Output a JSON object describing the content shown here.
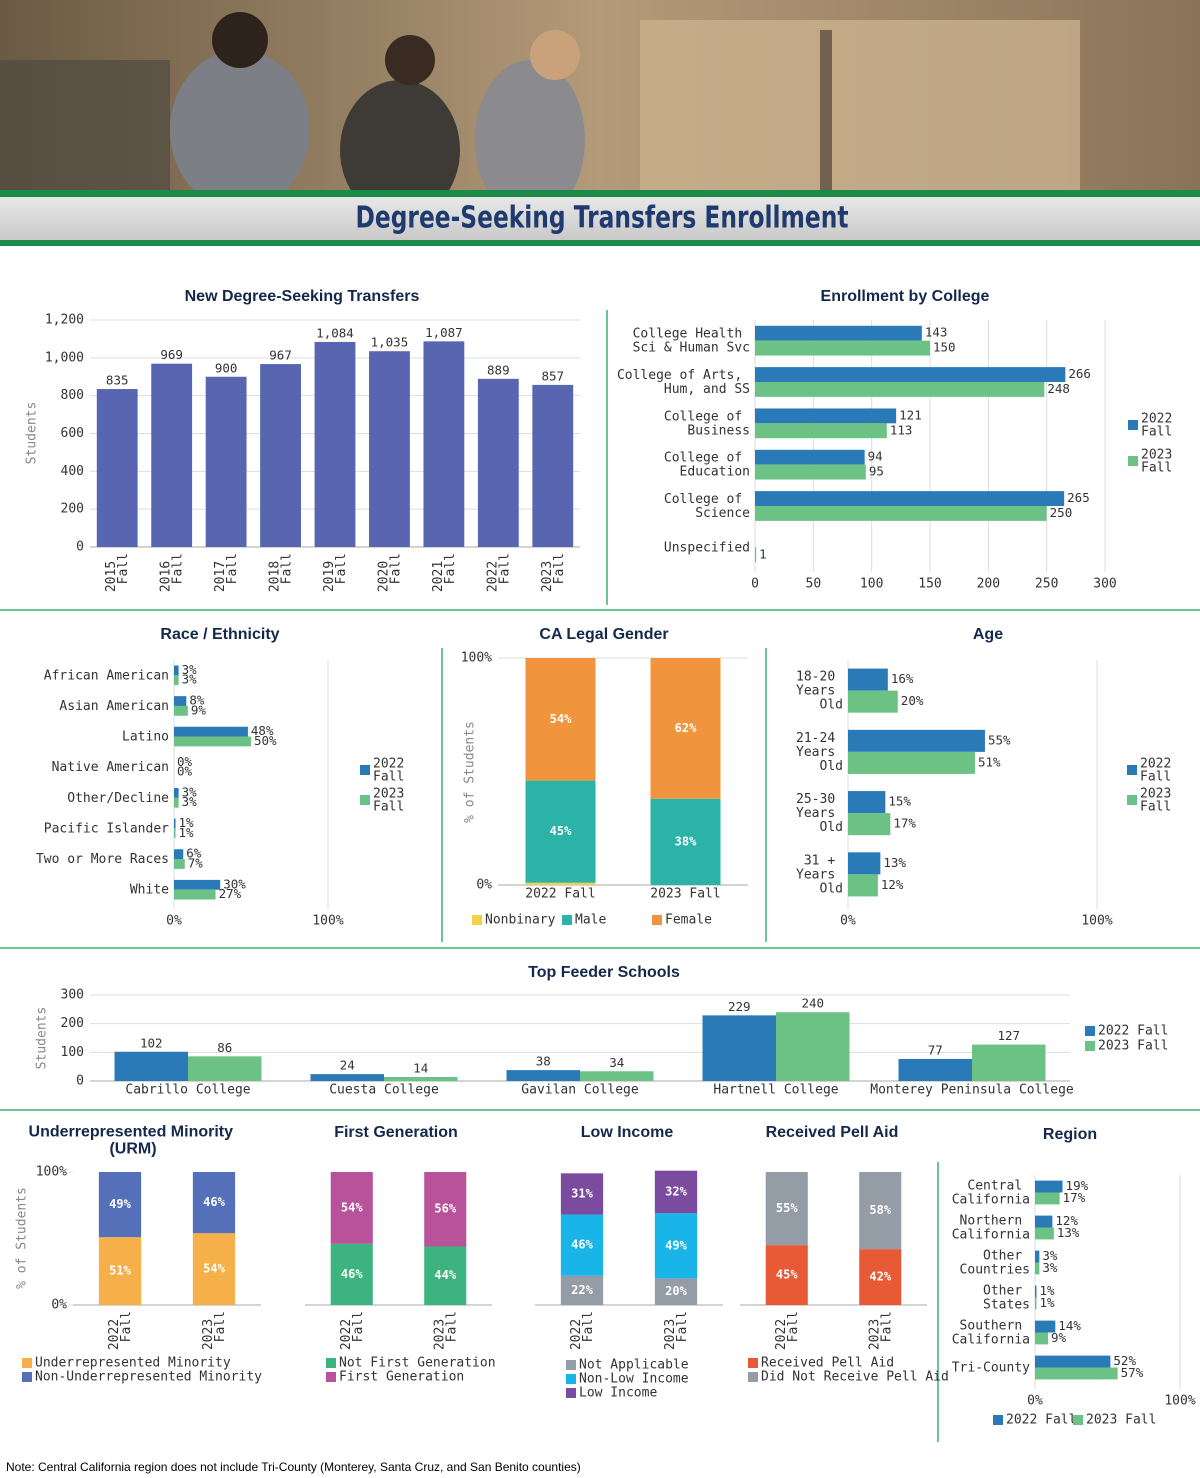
{
  "header": {
    "title": "Degree-Seeking Transfers Enrollment"
  },
  "chart_data": [
    {
      "type": "bar",
      "title": "New Degree-Seeking Transfers",
      "y_label": "Students",
      "categories": [
        "2015 Fall",
        "2016 Fall",
        "2017 Fall",
        "2018 Fall",
        "2019 Fall",
        "2020 Fall",
        "2021 Fall",
        "2022 Fall",
        "2023 Fall"
      ],
      "values": [
        835,
        969,
        900,
        967,
        1084,
        1035,
        1087,
        889,
        857
      ],
      "value_labels": [
        "835",
        "969",
        "900",
        "967",
        "1,084",
        "1,035",
        "1,087",
        "889",
        "857"
      ],
      "color": "#5865b0",
      "ylim": [
        0,
        1200
      ],
      "yticks": [
        0,
        200,
        400,
        600,
        800,
        {
          "value": 1000,
          "label": "1,000"
        },
        {
          "value": 1200,
          "label": "1,200"
        }
      ],
      "grid": true
    },
    {
      "type": "bar",
      "horizontal": true,
      "title": "Enrollment by College",
      "categories": [
        "College Health Sci & Human Svc",
        "College of Arts, Hum, and SS",
        "College of Business",
        "College of Education",
        "College of Science",
        "Unspecified"
      ],
      "series": [
        {
          "name": "2022 Fall",
          "color": "#2a7ab8",
          "values": [
            143,
            266,
            121,
            94,
            265,
            null
          ]
        },
        {
          "name": "2023 Fall",
          "color": "#6cc285",
          "values": [
            150,
            248,
            113,
            95,
            250,
            1
          ]
        }
      ],
      "xlim": [
        0,
        300
      ],
      "xticks": [
        0,
        50,
        100,
        150,
        200,
        250,
        300
      ],
      "grid": true,
      "legend": "right"
    },
    {
      "type": "bar",
      "horizontal": true,
      "title": "Race / Ethnicity",
      "categories": [
        "African American",
        "Asian American",
        "Latino",
        "Native American",
        "Other/Decline",
        "Pacific Islander",
        "Two or More Races",
        "White"
      ],
      "series": [
        {
          "name": "2022 Fall",
          "color": "#2a7ab8",
          "values": [
            3,
            8,
            48,
            0,
            3,
            1,
            6,
            30
          ],
          "value_labels": [
            "3%",
            "8%",
            "48%",
            "0%",
            "3%",
            "1%",
            "6%",
            "30%"
          ]
        },
        {
          "name": "2023 Fall",
          "color": "#6cc285",
          "values": [
            3,
            9,
            50,
            0,
            3,
            1,
            7,
            27
          ],
          "value_labels": [
            "3%",
            "9%",
            "50%",
            "0%",
            "3%",
            "1%",
            "7%",
            "27%"
          ]
        }
      ],
      "xlim": [
        0,
        100
      ],
      "xticks": [
        {
          "value": 0,
          "label": "0%"
        },
        {
          "value": 100,
          "label": "100%"
        }
      ],
      "grid": true,
      "legend": "right"
    },
    {
      "type": "bar",
      "stacked": true,
      "title": "CA Legal Gender",
      "y_label": "% of Students",
      "categories": [
        "2022 Fall",
        "2023 Fall"
      ],
      "series": [
        {
          "name": "Nonbinary",
          "color": "#f5d04a",
          "values": [
            1,
            0
          ]
        },
        {
          "name": "Male",
          "color": "#2bb3a8",
          "values": [
            45,
            38
          ],
          "value_labels": [
            "45%",
            "38%"
          ]
        },
        {
          "name": "Female",
          "color": "#f0943e",
          "values": [
            54,
            62
          ],
          "value_labels": [
            "54%",
            "62%"
          ]
        }
      ],
      "ylim": [
        0,
        100
      ],
      "yticks": [
        {
          "value": 0,
          "label": "0%"
        },
        {
          "value": 100,
          "label": "100%"
        }
      ],
      "grid": true,
      "legend": "bottom"
    },
    {
      "type": "bar",
      "horizontal": true,
      "title": "Age",
      "categories": [
        "18-20 Years Old",
        "21-24 Years Old",
        "25-30 Years Old",
        "31 + Years Old"
      ],
      "series": [
        {
          "name": "2022 Fall",
          "color": "#2a7ab8",
          "values": [
            16,
            55,
            15,
            13
          ],
          "value_labels": [
            "16%",
            "55%",
            "15%",
            "13%"
          ]
        },
        {
          "name": "2023 Fall",
          "color": "#6cc285",
          "values": [
            20,
            51,
            17,
            12
          ],
          "value_labels": [
            "20%",
            "51%",
            "17%",
            "12%"
          ]
        }
      ],
      "xlim": [
        0,
        100
      ],
      "xticks": [
        {
          "value": 0,
          "label": "0%"
        },
        {
          "value": 100,
          "label": "100%"
        }
      ],
      "grid": true,
      "legend": "right"
    },
    {
      "type": "bar",
      "title": "Top Feeder Schools",
      "y_label": "Students",
      "categories": [
        "Cabrillo College",
        "Cuesta College",
        "Gavilan College",
        "Hartnell College",
        "Monterey Peninsula College"
      ],
      "series": [
        {
          "name": "2022 Fall",
          "color": "#2a7ab8",
          "values": [
            102,
            24,
            38,
            229,
            77
          ]
        },
        {
          "name": "2023 Fall",
          "color": "#6cc285",
          "values": [
            86,
            14,
            34,
            240,
            127
          ]
        }
      ],
      "ylim": [
        0,
        300
      ],
      "yticks": [
        0,
        100,
        200,
        300
      ],
      "grid": true,
      "legend": "right"
    },
    {
      "type": "bar",
      "stacked": true,
      "title": "Underrepresented Minority (URM)",
      "y_label": "% of Students",
      "categories": [
        "2022 Fall",
        "2023 Fall"
      ],
      "series": [
        {
          "name": "Underrepresented Minority",
          "color": "#f5b04a",
          "values": [
            51,
            54
          ],
          "value_labels": [
            "51%",
            "54%"
          ]
        },
        {
          "name": "Non-Underrepresented Minority",
          "color": "#5470b8",
          "values": [
            49,
            46
          ],
          "value_labels": [
            "49%",
            "46%"
          ]
        }
      ],
      "ylim": [
        0,
        100
      ],
      "yticks": [
        {
          "value": 0,
          "label": "0%"
        },
        {
          "value": 100,
          "label": "100%"
        }
      ],
      "legend": "bottom"
    },
    {
      "type": "bar",
      "stacked": true,
      "title": "First Generation",
      "categories": [
        "2022 Fall",
        "2023 Fall"
      ],
      "series": [
        {
          "name": "Not First Generation",
          "color": "#3db37f",
          "values": [
            46,
            44
          ],
          "value_labels": [
            "46%",
            "44%"
          ]
        },
        {
          "name": "First Generation",
          "color": "#b8529a",
          "values": [
            54,
            56
          ],
          "value_labels": [
            "54%",
            "56%"
          ]
        }
      ],
      "ylim": [
        0,
        100
      ],
      "legend": "bottom"
    },
    {
      "type": "bar",
      "stacked": true,
      "title": "Low Income",
      "categories": [
        "2022 Fall",
        "2023 Fall"
      ],
      "series": [
        {
          "name": "Not Applicable",
          "color": "#949ca6",
          "values": [
            22,
            20
          ],
          "value_labels": [
            "22%",
            "20%"
          ]
        },
        {
          "name": "Non-Low Income",
          "color": "#19b5e8",
          "values": [
            46,
            49
          ],
          "value_labels": [
            "46%",
            "49%"
          ]
        },
        {
          "name": "Low Income",
          "color": "#7a4b9e",
          "values": [
            31,
            32
          ],
          "value_labels": [
            "31%",
            "32%"
          ]
        }
      ],
      "ylim": [
        0,
        100
      ],
      "legend": "bottom"
    },
    {
      "type": "bar",
      "stacked": true,
      "title": "Received Pell Aid",
      "categories": [
        "2022 Fall",
        "2023 Fall"
      ],
      "series": [
        {
          "name": "Received Pell Aid",
          "color": "#e85a35",
          "values": [
            45,
            42
          ],
          "value_labels": [
            "45%",
            "42%"
          ]
        },
        {
          "name": "Did Not Receive Pell Aid",
          "color": "#949ca6",
          "values": [
            55,
            58
          ],
          "value_labels": [
            "55%",
            "58%"
          ]
        }
      ],
      "ylim": [
        0,
        100
      ],
      "legend": "bottom"
    },
    {
      "type": "bar",
      "horizontal": true,
      "title": "Region",
      "categories": [
        "Central California",
        "Northern California",
        "Other Countries",
        "Other States",
        "Southern California",
        "Tri-County"
      ],
      "series": [
        {
          "name": "2022 Fall",
          "color": "#2a7ab8",
          "values": [
            19,
            12,
            3,
            1,
            14,
            52
          ],
          "value_labels": [
            "19%",
            "12%",
            "3%",
            "1%",
            "14%",
            "52%"
          ]
        },
        {
          "name": "2023 Fall",
          "color": "#6cc285",
          "values": [
            17,
            13,
            3,
            1,
            9,
            57
          ],
          "value_labels": [
            "17%",
            "13%",
            "3%",
            "1%",
            "9%",
            "57%"
          ]
        }
      ],
      "xlim": [
        0,
        100
      ],
      "xticks": [
        {
          "value": 0,
          "label": "0%"
        },
        {
          "value": 100,
          "label": "100%"
        }
      ],
      "grid": true,
      "legend": "bottom"
    }
  ],
  "note": "Note: Central California region does not include Tri-County (Monterey, Santa Cruz, and San Benito counties)"
}
